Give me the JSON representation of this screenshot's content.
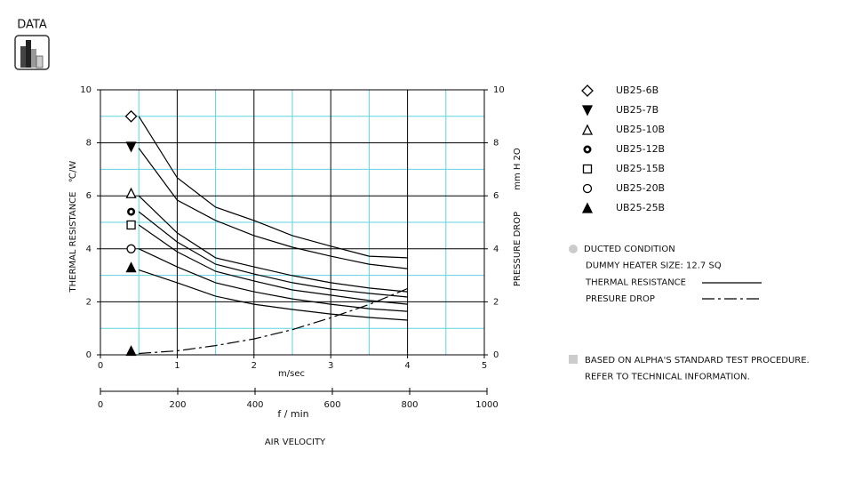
{
  "header": {
    "title": "DATA"
  },
  "chart_data": {
    "type": "line",
    "x_label": "m/sec",
    "x2_label": "f / min",
    "axis_title": "AIR VELOCITY",
    "y_label": "THERMAL RESISTANCE",
    "y_unit": "℃/W",
    "y2_label": "PRESSURE DROP",
    "y2_unit": "mm H 2O",
    "xlim": [
      0,
      5
    ],
    "xticks": [
      0,
      1,
      2,
      3,
      4,
      5
    ],
    "minor_xticks": [
      0.5,
      1.5,
      2.5,
      3.5,
      4.5
    ],
    "x2lim": [
      0,
      1000
    ],
    "x2ticks": [
      0,
      200,
      400,
      600,
      800,
      1000
    ],
    "ylim": [
      0,
      10
    ],
    "yticks": [
      0,
      2,
      4,
      6,
      8,
      10
    ],
    "minor_yticks": [
      1,
      3,
      5,
      7,
      9
    ],
    "y2lim": [
      0,
      10
    ],
    "y2ticks": [
      0,
      2,
      4,
      6,
      8,
      10
    ],
    "grid": true,
    "grid_color": "#000000",
    "minor_grid_color": "#5fd3e0",
    "x": [
      0.5,
      1,
      1.5,
      2,
      2.5,
      3,
      3.5,
      4
    ],
    "marker_x": 0.4,
    "series": [
      {
        "name": "UB25-6B",
        "marker": "diamond-open",
        "marker_value": 9.0,
        "color": "#000000",
        "values": [
          9.0,
          6.68,
          5.57,
          5.07,
          4.5,
          4.1,
          3.72,
          3.66
        ]
      },
      {
        "name": "UB25-7B",
        "marker": "triangle-down-filled",
        "marker_value": 7.85,
        "color": "#000000",
        "values": [
          7.8,
          5.84,
          5.07,
          4.5,
          4.06,
          3.72,
          3.42,
          3.25
        ]
      },
      {
        "name": "UB25-10B",
        "marker": "triangle-open",
        "marker_value": 6.1,
        "color": "#000000",
        "values": [
          6.0,
          4.6,
          3.66,
          3.32,
          2.99,
          2.72,
          2.52,
          2.38
        ]
      },
      {
        "name": "UB25-12B",
        "marker": "circle-bold",
        "marker_value": 5.4,
        "color": "#000000",
        "values": [
          5.4,
          4.26,
          3.42,
          3.05,
          2.72,
          2.48,
          2.32,
          2.18
        ]
      },
      {
        "name": "UB25-15B",
        "marker": "square-open",
        "marker_value": 4.9,
        "color": "#000000",
        "values": [
          4.9,
          3.89,
          3.15,
          2.79,
          2.45,
          2.25,
          2.05,
          1.91
        ]
      },
      {
        "name": "UB25-20B",
        "marker": "circle-open",
        "marker_value": 4.0,
        "color": "#000000",
        "values": [
          4.0,
          3.32,
          2.72,
          2.38,
          2.11,
          1.91,
          1.74,
          1.64
        ]
      },
      {
        "name": "UB25-25B",
        "marker": "triangle-filled",
        "marker_value": 3.3,
        "color": "#000000",
        "values": [
          3.2,
          2.72,
          2.21,
          1.91,
          1.71,
          1.54,
          1.41,
          1.31
        ]
      }
    ],
    "pressure_drop": {
      "axis": "y2",
      "marker": "triangle-filled",
      "marker_value": 0.15,
      "color": "#000000",
      "values": [
        0.05,
        0.15,
        0.35,
        0.6,
        0.95,
        1.4,
        1.9,
        2.5
      ]
    },
    "notes": [
      "DUCTED CONDITION",
      "DUMMY HEATER SIZE: 12.7 SQ",
      "THERMAL RESISTANCE",
      "PRESURE DROP"
    ],
    "footnotes": [
      "BASED ON ALPHA'S STANDARD TEST PROCEDURE.",
      "REFER TO TECHNICAL INFORMATION."
    ]
  }
}
